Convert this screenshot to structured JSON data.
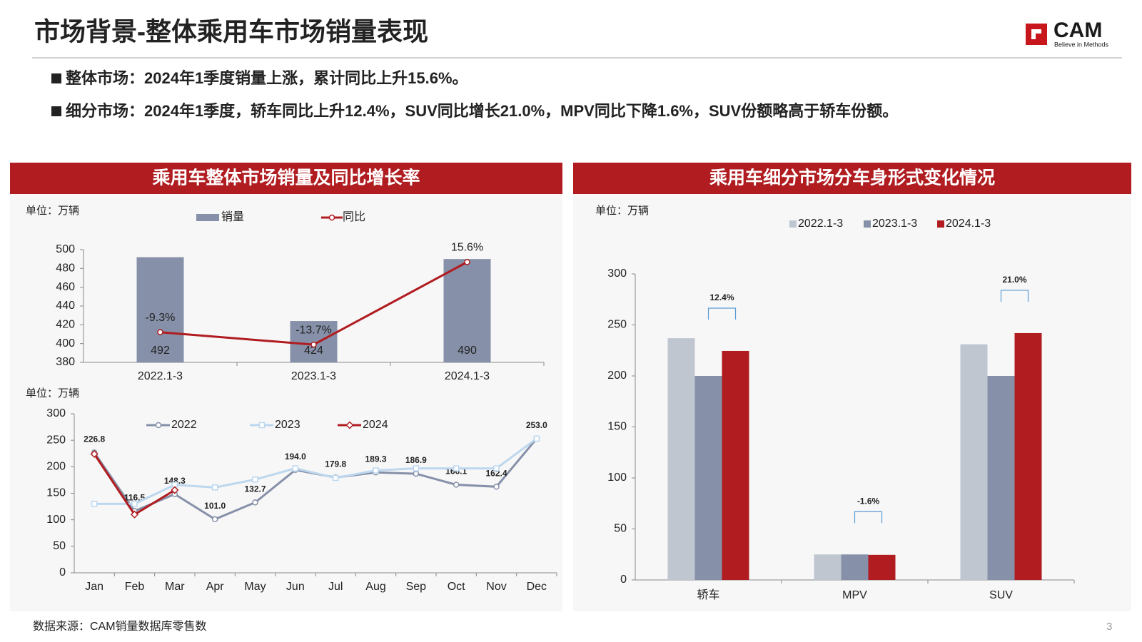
{
  "header": {
    "title": "市场背景-整体乘用车市场销量表现",
    "logo": "CAM",
    "tagline": "Believe in Methods",
    "bullets": [
      "整体市场：2024年1季度销量上涨，累计同比上升15.6%。",
      "细分市场：2024年1季度，轿车同比上升12.4%，SUV同比增长21.0%，MPV同比下降1.6%，SUV份额略高于轿车份额。"
    ]
  },
  "chart_data": [
    {
      "type": "combo",
      "title": "乘用车整体市场销量及同比增长率",
      "unit": "单位：万辆",
      "categories": [
        "2022.1-3",
        "2023.1-3",
        "2024.1-3"
      ],
      "ylim": [
        380,
        500
      ],
      "yticks": [
        380,
        400,
        420,
        440,
        460,
        480,
        500
      ],
      "y2lim": [
        -20,
        20
      ],
      "series": [
        {
          "name": "销量",
          "type": "bar",
          "color": "#8690a8",
          "values": [
            492,
            424,
            490
          ]
        },
        {
          "name": "同比",
          "type": "line",
          "axis": "y2",
          "color": "#b01c20",
          "values": [
            -9.3,
            -13.7,
            15.6
          ],
          "value_labels": [
            "-9.3%",
            "-13.7%",
            "15.6%"
          ]
        }
      ]
    },
    {
      "type": "line",
      "unit": "单位：万辆",
      "categories": [
        "Jan",
        "Feb",
        "Mar",
        "Apr",
        "May",
        "Jun",
        "Jul",
        "Aug",
        "Sep",
        "Oct",
        "Nov",
        "Dec"
      ],
      "ylim": [
        0,
        300
      ],
      "yticks": [
        0,
        50,
        100,
        150,
        200,
        250,
        300
      ],
      "series": [
        {
          "name": "2022",
          "color": "#8690a8",
          "marker": "circle",
          "values": [
            226.8,
            116.5,
            148.3,
            101.0,
            132.7,
            194.0,
            179.8,
            189.3,
            186.9,
            166.1,
            162.4,
            253.0
          ],
          "value_labels": [
            "226.8",
            "116.5",
            "148.3",
            "101.0",
            "132.7",
            "194.0",
            "179.8",
            "189.3",
            "186.9",
            "166.1",
            "162.4",
            "253.0"
          ]
        },
        {
          "name": "2023",
          "color": "#bcd7ee",
          "marker": "square",
          "values": [
            130,
            130,
            166,
            161,
            176,
            197,
            179,
            193,
            197,
            197,
            197,
            253
          ]
        },
        {
          "name": "2024",
          "color": "#b01c20",
          "marker": "diamond",
          "values": [
            224,
            110,
            156,
            null,
            null,
            null,
            null,
            null,
            null,
            null,
            null,
            null
          ]
        }
      ]
    },
    {
      "type": "grouped-bar",
      "title": "乘用车细分市场分车身形式变化情况",
      "unit": "单位：万辆",
      "categories": [
        "轿车",
        "MPV",
        "SUV"
      ],
      "ylim": [
        0,
        300
      ],
      "yticks": [
        0,
        50,
        100,
        150,
        200,
        250,
        300
      ],
      "annotations": [
        "12.4%",
        "-1.6%",
        "21.0%"
      ],
      "series": [
        {
          "name": "2022.1-3",
          "color": "#c0c6d0",
          "values": [
            237,
            25,
            231
          ]
        },
        {
          "name": "2023.1-3",
          "color": "#8690a8",
          "values": [
            200,
            25,
            200
          ]
        },
        {
          "name": "2024.1-3",
          "color": "#b01c20",
          "values": [
            224.5,
            24.6,
            242
          ]
        }
      ]
    }
  ],
  "footer": {
    "source": "数据来源：CAM销量数据库零售数",
    "page": "3"
  }
}
